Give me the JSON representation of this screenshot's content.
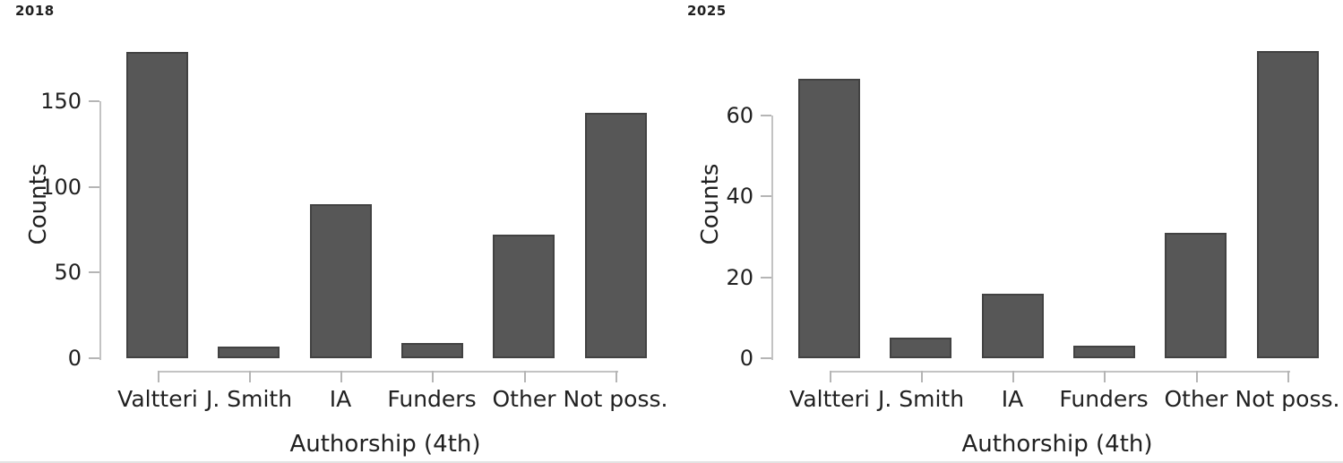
{
  "figure": {
    "background": "#ffffff",
    "bar_color": "#575757",
    "bar_edge_color": "#424242",
    "axis_color": "#c3c3c3",
    "tick_color": "#b5b5b5",
    "text_color": "#212121"
  },
  "chart_data": [
    {
      "type": "bar",
      "title": "2018",
      "categories": [
        "Valtteri",
        "J. Smith",
        "IA",
        "Funders",
        "Other",
        "Not poss."
      ],
      "values": [
        179,
        7,
        90,
        9,
        72,
        143
      ],
      "xlabel": "Authorship (4th)",
      "ylabel": "Counts",
      "yticks": [
        0,
        50,
        100,
        150
      ],
      "ylim": [
        0,
        180
      ],
      "grid": false,
      "legend": "none"
    },
    {
      "type": "bar",
      "title": "2025",
      "categories": [
        "Valtteri",
        "J. Smith",
        "IA",
        "Funders",
        "Other",
        "Not poss."
      ],
      "values": [
        69,
        5,
        16,
        3,
        31,
        76
      ],
      "xlabel": "Authorship (4th)",
      "ylabel": "Counts",
      "yticks": [
        0,
        20,
        40,
        60
      ],
      "ylim": [
        0,
        76
      ],
      "grid": false,
      "legend": "none"
    }
  ]
}
